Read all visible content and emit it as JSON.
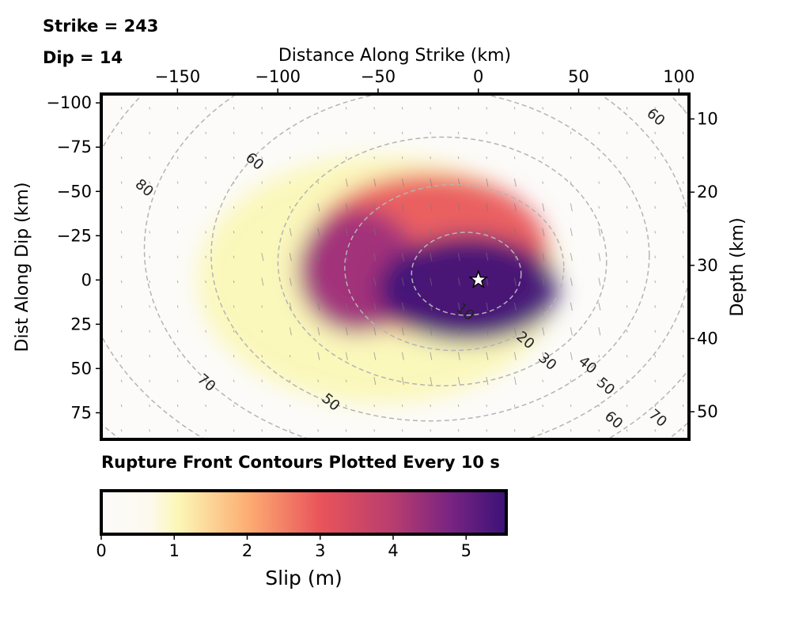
{
  "header": {
    "strike_text": "Strike = 243",
    "dip_text": "Dip = 14"
  },
  "caption": "Rupture Front Contours Plotted Every 10 s",
  "chart_data": {
    "type": "heatmap",
    "title": "",
    "xlabel_top": "Distance Along Strike (km)",
    "ylabel_left": "Dist Along Dip (km)",
    "ylabel_right": "Depth (km)",
    "xlim": [
      -188,
      105
    ],
    "ylim": [
      -105,
      90
    ],
    "x_ticks": [
      -150,
      -100,
      -50,
      0,
      50,
      100
    ],
    "x_tick_labels": [
      "−150",
      "−100",
      "−50",
      "0",
      "50",
      "100"
    ],
    "y_ticks": [
      -100,
      -75,
      -50,
      -25,
      0,
      25,
      50,
      75
    ],
    "y_tick_labels": [
      "−100",
      "−75",
      "−50",
      "−25",
      "0",
      "25",
      "50",
      "75"
    ],
    "depth_ticks": [
      10,
      20,
      30,
      40,
      50
    ],
    "depth_tick_labels": [
      "10",
      "20",
      "30",
      "40",
      "50"
    ],
    "depth_at_y0": 32,
    "colormap": "magma_r",
    "colors": [
      "#fcfbf9",
      "#fbf7b6",
      "#fdae73",
      "#e9545a",
      "#9b2e7d",
      "#3b1278"
    ],
    "slip_patches": [
      {
        "x": -5,
        "y": 5,
        "rx": 45,
        "ry": 30,
        "slip": 5.3
      },
      {
        "x": -60,
        "y": -5,
        "rx": 30,
        "ry": 35,
        "slip": 4.3
      },
      {
        "x": -25,
        "y": -15,
        "rx": 60,
        "ry": 45,
        "slip": 3.0
      },
      {
        "x": -50,
        "y": 0,
        "rx": 90,
        "ry": 70,
        "slip": 1.2
      }
    ],
    "hypocenter": {
      "x": 0,
      "y": 0
    },
    "contours": {
      "interval_s": 10,
      "levels": [
        10,
        20,
        30,
        40,
        50,
        60,
        70,
        80
      ],
      "labels": [
        {
          "text": "10",
          "x": -8,
          "y": 20
        },
        {
          "text": "20",
          "x": 22,
          "y": 36
        },
        {
          "text": "30",
          "x": 33,
          "y": 48
        },
        {
          "text": "40",
          "x": 53,
          "y": 50
        },
        {
          "text": "50",
          "x": 62,
          "y": 62
        },
        {
          "text": "60",
          "x": 66,
          "y": 81
        },
        {
          "text": "70",
          "x": 88,
          "y": 80
        },
        {
          "text": "50",
          "x": -75,
          "y": 71
        },
        {
          "text": "70",
          "x": -137,
          "y": 60
        },
        {
          "text": "60",
          "x": -113,
          "y": -65
        },
        {
          "text": "80",
          "x": -168,
          "y": -50
        },
        {
          "text": "60",
          "x": 87,
          "y": -90
        }
      ]
    },
    "colorbar": {
      "label": "Slip (m)",
      "range": [
        0,
        5.55
      ],
      "ticks": [
        0,
        1,
        2,
        3,
        4,
        5
      ],
      "tick_labels": [
        "0",
        "1",
        "2",
        "3",
        "4",
        "5"
      ]
    }
  }
}
